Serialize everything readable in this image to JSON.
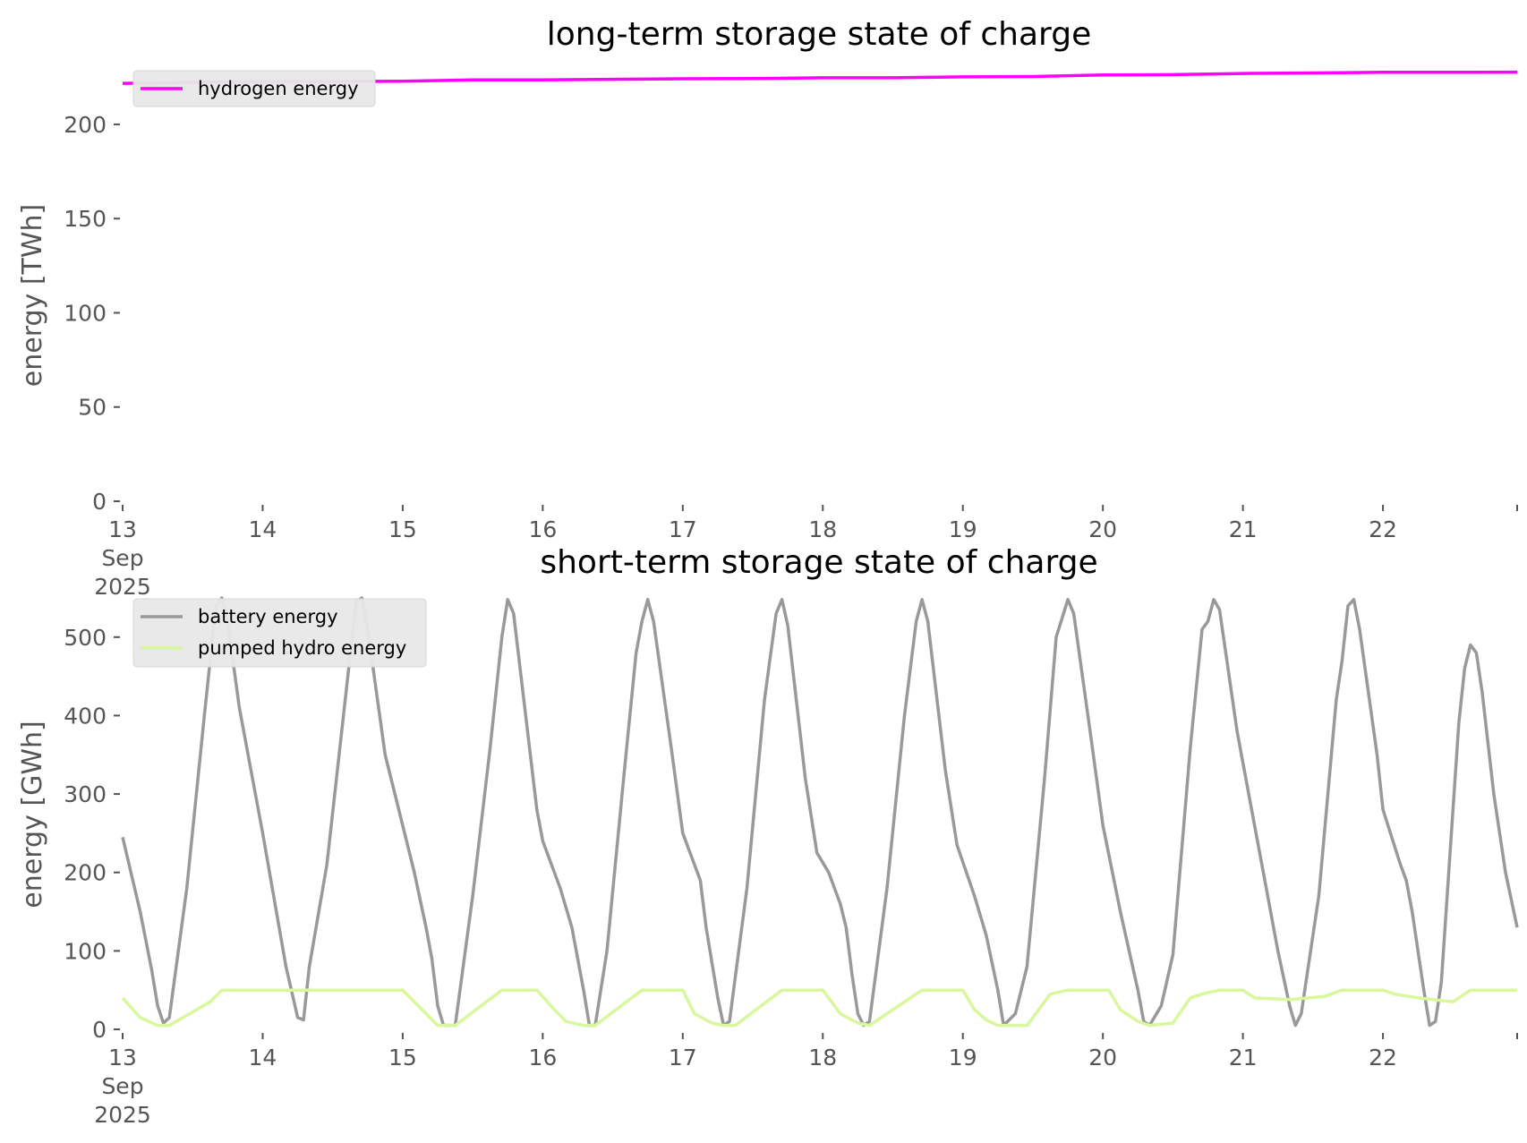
{
  "chart_data": [
    {
      "type": "line",
      "title": "long-term storage state of charge",
      "ylabel": "energy [TWh]",
      "xlabel": "",
      "ylim": [
        0,
        228
      ],
      "yticks": [
        "0",
        "50",
        "100",
        "150",
        "200"
      ],
      "xlim": [
        0,
        239
      ],
      "xticks": [
        {
          "hour": 0,
          "lines": [
            "13",
            "Sep",
            "2025"
          ]
        },
        {
          "hour": 24,
          "lines": [
            "14"
          ]
        },
        {
          "hour": 48,
          "lines": [
            "15"
          ]
        },
        {
          "hour": 72,
          "lines": [
            "16"
          ]
        },
        {
          "hour": 96,
          "lines": [
            "17"
          ]
        },
        {
          "hour": 120,
          "lines": [
            "18"
          ]
        },
        {
          "hour": 144,
          "lines": [
            "19"
          ]
        },
        {
          "hour": 168,
          "lines": [
            "20"
          ]
        },
        {
          "hour": 192,
          "lines": [
            "21"
          ]
        },
        {
          "hour": 216,
          "lines": [
            "22"
          ]
        }
      ],
      "legend_position": "top-left",
      "grid": false,
      "series": [
        {
          "name": "hydrogen energy",
          "color": "#ff00ff",
          "points": [
            [
              0,
              221.8
            ],
            [
              15,
              222.4
            ],
            [
              24,
              222.6
            ],
            [
              48,
              222.9
            ],
            [
              60,
              223.6
            ],
            [
              72,
              223.6
            ],
            [
              84,
              223.9
            ],
            [
              96,
              224.2
            ],
            [
              108,
              224.3
            ],
            [
              120,
              224.7
            ],
            [
              132,
              224.7
            ],
            [
              144,
              225.2
            ],
            [
              156,
              225.4
            ],
            [
              168,
              226.2
            ],
            [
              180,
              226.4
            ],
            [
              192,
              227.0
            ],
            [
              204,
              227.3
            ],
            [
              216,
              227.6
            ],
            [
              228,
              227.6
            ],
            [
              239,
              227.7
            ]
          ]
        }
      ]
    },
    {
      "type": "line",
      "title": "short-term storage state of charge",
      "ylabel": "energy [GWh]",
      "xlabel": "",
      "ylim": [
        0,
        550
      ],
      "yticks": [
        "0",
        "100",
        "200",
        "300",
        "400",
        "500"
      ],
      "xlim": [
        0,
        239
      ],
      "xticks": [
        {
          "hour": 0,
          "lines": [
            "13",
            "Sep",
            "2025"
          ]
        },
        {
          "hour": 24,
          "lines": [
            "14"
          ]
        },
        {
          "hour": 48,
          "lines": [
            "15"
          ]
        },
        {
          "hour": 72,
          "lines": [
            "16"
          ]
        },
        {
          "hour": 96,
          "lines": [
            "17"
          ]
        },
        {
          "hour": 120,
          "lines": [
            "18"
          ]
        },
        {
          "hour": 144,
          "lines": [
            "19"
          ]
        },
        {
          "hour": 168,
          "lines": [
            "20"
          ]
        },
        {
          "hour": 192,
          "lines": [
            "21"
          ]
        },
        {
          "hour": 216,
          "lines": [
            "22"
          ]
        }
      ],
      "legend_position": "top-left",
      "grid": false,
      "series": [
        {
          "name": "battery energy",
          "color": "#999999",
          "points": [
            [
              0,
              245
            ],
            [
              3,
              150
            ],
            [
              5,
              75
            ],
            [
              6,
              30
            ],
            [
              7,
              8
            ],
            [
              8,
              15
            ],
            [
              11,
              180
            ],
            [
              14,
              400
            ],
            [
              16,
              540
            ],
            [
              17,
              550
            ],
            [
              18,
              520
            ],
            [
              20,
              410
            ],
            [
              24,
              250
            ],
            [
              28,
              80
            ],
            [
              30,
              15
            ],
            [
              31,
              12
            ],
            [
              32,
              80
            ],
            [
              35,
              210
            ],
            [
              38,
              410
            ],
            [
              40,
              545
            ],
            [
              41,
              550
            ],
            [
              42,
              510
            ],
            [
              45,
              350
            ],
            [
              47,
              290
            ],
            [
              50,
              200
            ],
            [
              52,
              130
            ],
            [
              53,
              90
            ],
            [
              54,
              30
            ],
            [
              55,
              5
            ],
            [
              57,
              5
            ],
            [
              60,
              170
            ],
            [
              63,
              360
            ],
            [
              65,
              500
            ],
            [
              66,
              548
            ],
            [
              67,
              530
            ],
            [
              71,
              280
            ],
            [
              72,
              240
            ],
            [
              75,
              180
            ],
            [
              77,
              130
            ],
            [
              79,
              50
            ],
            [
              80,
              5
            ],
            [
              81,
              5
            ],
            [
              83,
              100
            ],
            [
              86,
              330
            ],
            [
              88,
              480
            ],
            [
              89,
              520
            ],
            [
              90,
              548
            ],
            [
              91,
              520
            ],
            [
              94,
              360
            ],
            [
              96,
              250
            ],
            [
              99,
              190
            ],
            [
              100,
              130
            ],
            [
              102,
              40
            ],
            [
              103,
              5
            ],
            [
              104,
              10
            ],
            [
              107,
              180
            ],
            [
              110,
              420
            ],
            [
              112,
              530
            ],
            [
              113,
              548
            ],
            [
              114,
              515
            ],
            [
              117,
              320
            ],
            [
              119,
              225
            ],
            [
              121,
              200
            ],
            [
              123,
              160
            ],
            [
              124,
              130
            ],
            [
              125,
              70
            ],
            [
              126,
              20
            ],
            [
              127,
              5
            ],
            [
              128,
              10
            ],
            [
              131,
              180
            ],
            [
              134,
              400
            ],
            [
              136,
              520
            ],
            [
              137,
              548
            ],
            [
              138,
              520
            ],
            [
              141,
              330
            ],
            [
              143,
              235
            ],
            [
              146,
              170
            ],
            [
              148,
              120
            ],
            [
              150,
              50
            ],
            [
              151,
              5
            ],
            [
              153,
              20
            ],
            [
              155,
              80
            ],
            [
              158,
              320
            ],
            [
              160,
              500
            ],
            [
              162,
              548
            ],
            [
              163,
              530
            ],
            [
              166,
              370
            ],
            [
              168,
              260
            ],
            [
              171,
              150
            ],
            [
              174,
              50
            ],
            [
              175,
              10
            ],
            [
              176,
              5
            ],
            [
              178,
              30
            ],
            [
              180,
              95
            ],
            [
              183,
              360
            ],
            [
              185,
              510
            ],
            [
              186,
              520
            ],
            [
              187,
              548
            ],
            [
              188,
              535
            ],
            [
              191,
              380
            ],
            [
              193,
              300
            ],
            [
              196,
              180
            ],
            [
              198,
              100
            ],
            [
              200,
              30
            ],
            [
              201,
              5
            ],
            [
              202,
              20
            ],
            [
              205,
              170
            ],
            [
              208,
              420
            ],
            [
              209,
              470
            ],
            [
              210,
              540
            ],
            [
              211,
              548
            ],
            [
              212,
              510
            ],
            [
              215,
              350
            ],
            [
              216,
              280
            ],
            [
              219,
              210
            ],
            [
              220,
              190
            ],
            [
              221,
              150
            ],
            [
              222,
              100
            ],
            [
              223,
              50
            ],
            [
              224,
              5
            ],
            [
              225,
              10
            ],
            [
              226,
              60
            ],
            [
              228,
              280
            ],
            [
              229,
              390
            ],
            [
              230,
              460
            ],
            [
              231,
              490
            ],
            [
              232,
              480
            ],
            [
              233,
              430
            ],
            [
              235,
              300
            ],
            [
              237,
              200
            ],
            [
              239,
              130
            ]
          ]
        },
        {
          "name": "pumped hydro energy",
          "color": "#d9f79c",
          "points": [
            [
              0,
              40
            ],
            [
              3,
              15
            ],
            [
              6,
              5
            ],
            [
              8,
              5
            ],
            [
              15,
              35
            ],
            [
              17,
              50
            ],
            [
              24,
              50
            ],
            [
              41,
              50
            ],
            [
              48,
              50
            ],
            [
              52,
              20
            ],
            [
              54,
              5
            ],
            [
              57,
              5
            ],
            [
              65,
              50
            ],
            [
              71,
              50
            ],
            [
              74,
              25
            ],
            [
              76,
              10
            ],
            [
              79,
              5
            ],
            [
              81,
              5
            ],
            [
              89,
              50
            ],
            [
              96,
              50
            ],
            [
              98,
              20
            ],
            [
              101,
              8
            ],
            [
              103,
              5
            ],
            [
              105,
              5
            ],
            [
              113,
              50
            ],
            [
              120,
              50
            ],
            [
              123,
              20
            ],
            [
              126,
              8
            ],
            [
              128,
              5
            ],
            [
              137,
              50
            ],
            [
              144,
              50
            ],
            [
              146,
              25
            ],
            [
              148,
              12
            ],
            [
              150,
              5
            ],
            [
              155,
              5
            ],
            [
              159,
              45
            ],
            [
              162,
              50
            ],
            [
              169,
              50
            ],
            [
              171,
              25
            ],
            [
              174,
              10
            ],
            [
              176,
              5
            ],
            [
              180,
              8
            ],
            [
              183,
              40
            ],
            [
              185,
              45
            ],
            [
              188,
              50
            ],
            [
              192,
              50
            ],
            [
              194,
              40
            ],
            [
              200,
              38
            ],
            [
              206,
              42
            ],
            [
              209,
              50
            ],
            [
              216,
              50
            ],
            [
              218,
              45
            ],
            [
              222,
              40
            ],
            [
              228,
              35
            ],
            [
              231,
              50
            ],
            [
              239,
              50
            ]
          ]
        }
      ]
    }
  ]
}
